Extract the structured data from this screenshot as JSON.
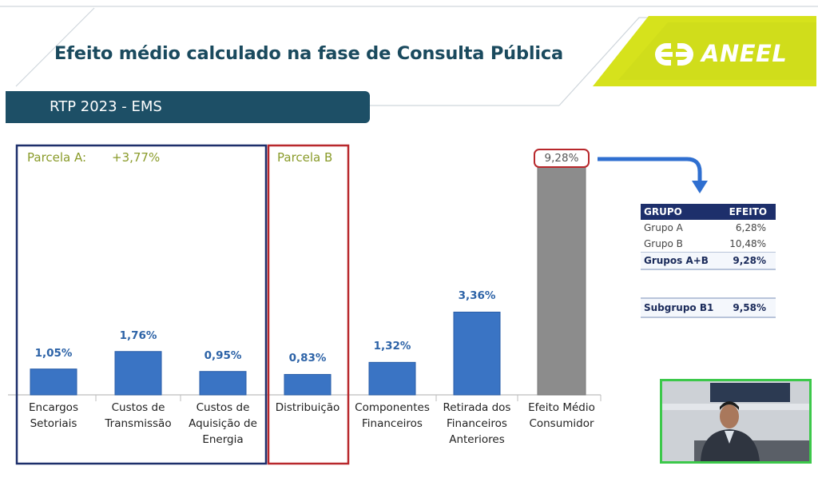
{
  "slide": {
    "title": "Efeito médio calculado na fase de Consulta Pública",
    "subtitle": "RTP 2023 - EMS",
    "logo_text": "ANEEL"
  },
  "colors": {
    "brand_dark": "#1d4f66",
    "logo_green": "#d6e21c",
    "bar_blue": "#3a74c4",
    "bar_gray": "#8c8c8c",
    "box_blue": "#1d2f6b",
    "box_red": "#b8282c",
    "label_green": "#8a9b2a"
  },
  "boxes": {
    "parcela_a_label": "Parcela A:",
    "parcela_a_value": "+3,77%",
    "parcela_b_label": "Parcela B"
  },
  "chart_data": {
    "type": "bar",
    "categories": [
      "Encargos\nSetoriais",
      "Custos de\nTransmissão",
      "Custos de\nAquisição de\nEnergia",
      "Distribuição",
      "Componentes\nFinanceiros",
      "Retirada dos\nFinanceiros\nAnteriores",
      "Efeito Médio\nConsumidor"
    ],
    "values": [
      1.05,
      1.76,
      0.95,
      0.83,
      1.32,
      3.36,
      9.28
    ],
    "value_labels": [
      "1,05%",
      "1,76%",
      "0,95%",
      "0,83%",
      "1,32%",
      "3,36%",
      "9,28%"
    ],
    "total_index": 6,
    "ylim": [
      0,
      9.28
    ],
    "title": "",
    "xlabel": "",
    "ylabel": "",
    "grid": false
  },
  "summary_table": {
    "headers": [
      "GRUPO",
      "EFEITO"
    ],
    "rows": [
      {
        "grupo": "Grupo A",
        "efeito": "6,28%"
      },
      {
        "grupo": "Grupo B",
        "efeito": "10,48%"
      }
    ],
    "total": {
      "grupo": "Grupos A+B",
      "efeito": "9,28%"
    },
    "subgroup": {
      "grupo": "Subgrupo B1",
      "efeito": "9,58%"
    }
  }
}
